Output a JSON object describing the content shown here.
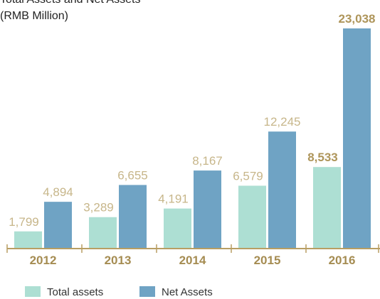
{
  "chart_data": {
    "type": "bar",
    "title": "Total Assets and Net Assets",
    "subtitle": "(RMB Million)",
    "categories": [
      "2012",
      "2013",
      "2014",
      "2015",
      "2016"
    ],
    "series": [
      {
        "name": "Total assets",
        "color": "#addfd3",
        "values": [
          1799,
          3289,
          4191,
          6579,
          8533
        ],
        "value_labels": [
          "1,799",
          "3,289",
          "4,191",
          "6,579",
          "8,533"
        ]
      },
      {
        "name": "Net Assets",
        "color": "#6fa3c4",
        "values": [
          4894,
          6655,
          8167,
          12245,
          23038
        ],
        "value_labels": [
          "4,894",
          "6,655",
          "8,167",
          "12,245",
          "23,038"
        ]
      }
    ]
  }
}
